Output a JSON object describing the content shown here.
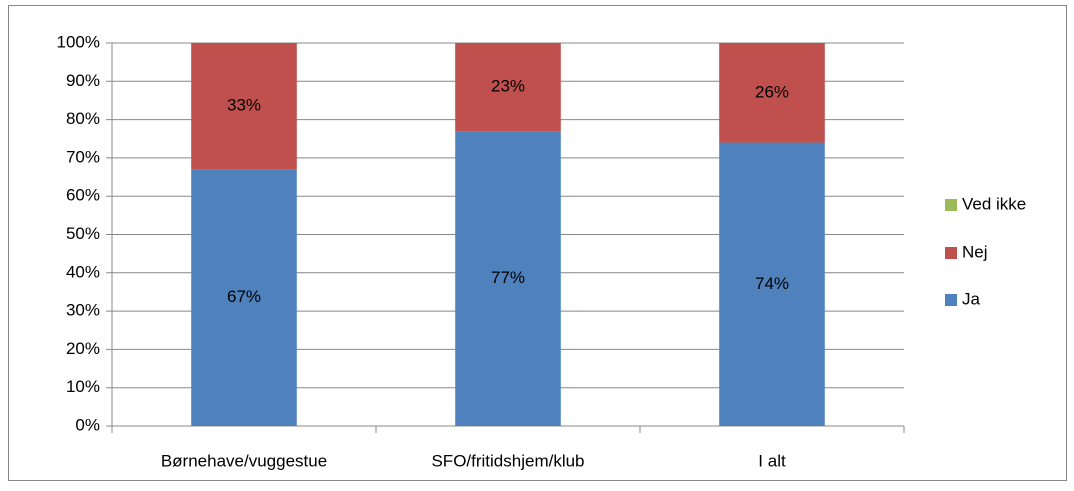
{
  "chart_data": {
    "type": "stacked_bar",
    "categories": [
      "Børnehave/vuggestue",
      "SFO/fritidshjem/klub",
      "I alt"
    ],
    "series": [
      {
        "name": "Ja",
        "color": "#4f81bd",
        "values": [
          67,
          77,
          74
        ],
        "value_labels": [
          "67%",
          "77%",
          "74%"
        ]
      },
      {
        "name": "Nej",
        "color": "#c0504d",
        "values": [
          33,
          23,
          26
        ],
        "value_labels": [
          "33%",
          "23%",
          "26%"
        ]
      },
      {
        "name": "Ved ikke",
        "color": "#9bbb59",
        "values": [
          0,
          0,
          0
        ]
      }
    ],
    "ylim": [
      0,
      100
    ],
    "yticks": [
      {
        "value": 0,
        "label": "0%"
      },
      {
        "value": 10,
        "label": "10%"
      },
      {
        "value": 20,
        "label": "20%"
      },
      {
        "value": 30,
        "label": "30%"
      },
      {
        "value": 40,
        "label": "40%"
      },
      {
        "value": 50,
        "label": "50%"
      },
      {
        "value": 60,
        "label": "60%"
      },
      {
        "value": 70,
        "label": "70%"
      },
      {
        "value": 80,
        "label": "80%"
      },
      {
        "value": 90,
        "label": "90%"
      },
      {
        "value": 100,
        "label": "100%"
      }
    ],
    "grid": true,
    "legend": "right"
  }
}
